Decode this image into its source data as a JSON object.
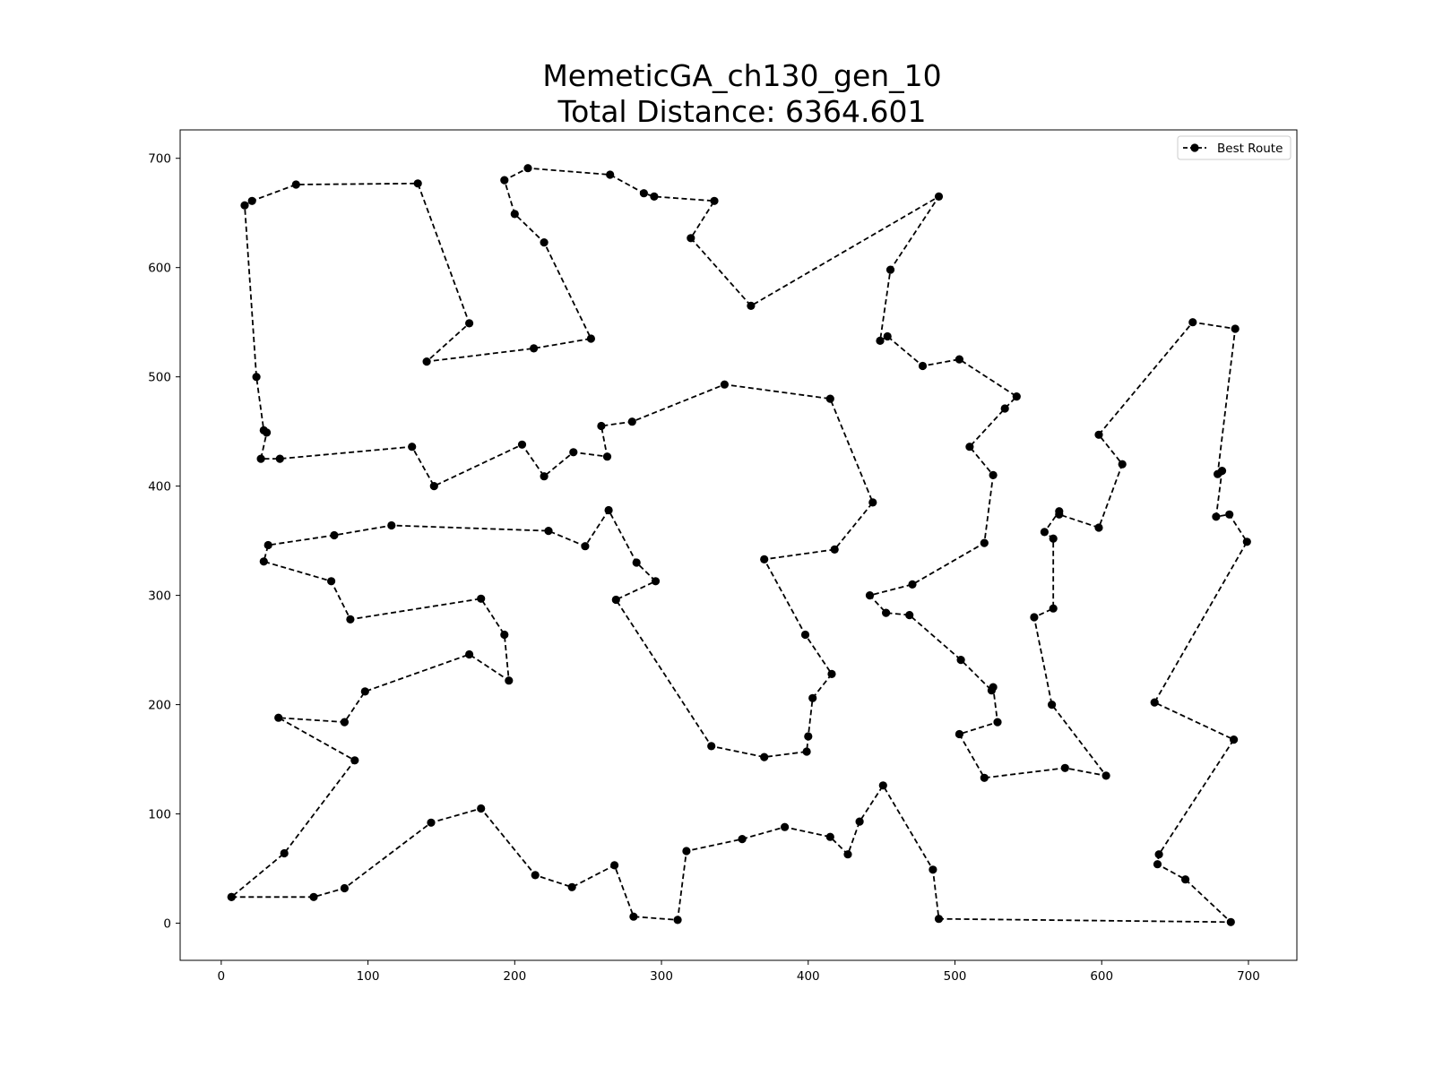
{
  "chart_data": {
    "type": "line",
    "title_line1": "MemeticGA_ch130_gen_10",
    "title_line2": "Total Distance: 6364.601",
    "xlabel": "",
    "ylabel": "",
    "xlim": [
      -28,
      733
    ],
    "ylim": [
      -34,
      726
    ],
    "x_ticks": [
      0,
      100,
      200,
      300,
      400,
      500,
      600,
      700
    ],
    "y_ticks": [
      0,
      100,
      200,
      300,
      400,
      500,
      600,
      700
    ],
    "grid": false,
    "legend": {
      "location": "upper right",
      "entries": [
        "Best Route"
      ]
    },
    "series": [
      {
        "name": "Best Route",
        "color": "#000000",
        "line_style": "dashed",
        "marker": "circle",
        "points": [
          [
            7,
            24
          ],
          [
            63,
            24
          ],
          [
            84,
            32
          ],
          [
            143,
            92
          ],
          [
            177,
            105
          ],
          [
            214,
            44
          ],
          [
            239,
            33
          ],
          [
            268,
            53
          ],
          [
            281,
            6
          ],
          [
            311,
            3
          ],
          [
            317,
            66
          ],
          [
            355,
            77
          ],
          [
            384,
            88
          ],
          [
            415,
            79
          ],
          [
            427,
            63
          ],
          [
            435,
            93
          ],
          [
            451,
            126
          ],
          [
            485,
            49
          ],
          [
            489,
            4
          ],
          [
            688,
            1
          ],
          [
            657,
            40
          ],
          [
            638,
            54
          ],
          [
            639,
            63
          ],
          [
            690,
            168
          ],
          [
            636,
            202
          ],
          [
            699,
            349
          ],
          [
            687,
            374
          ],
          [
            678,
            372
          ],
          [
            682,
            414
          ],
          [
            679,
            411
          ],
          [
            691,
            544
          ],
          [
            662,
            550
          ],
          [
            598,
            447
          ],
          [
            614,
            420
          ],
          [
            598,
            362
          ],
          [
            571,
            374
          ],
          [
            571,
            377
          ],
          [
            561,
            358
          ],
          [
            567,
            352
          ],
          [
            567,
            288
          ],
          [
            554,
            280
          ],
          [
            566,
            200
          ],
          [
            603,
            135
          ],
          [
            575,
            142
          ],
          [
            520,
            133
          ],
          [
            503,
            173
          ],
          [
            529,
            184
          ],
          [
            526,
            216
          ],
          [
            525,
            213
          ],
          [
            504,
            241
          ],
          [
            469,
            282
          ],
          [
            453,
            284
          ],
          [
            442,
            300
          ],
          [
            471,
            310
          ],
          [
            520,
            348
          ],
          [
            526,
            410
          ],
          [
            510,
            436
          ],
          [
            534,
            471
          ],
          [
            542,
            482
          ],
          [
            503,
            516
          ],
          [
            478,
            510
          ],
          [
            454,
            537
          ],
          [
            449,
            533
          ],
          [
            456,
            598
          ],
          [
            489,
            665
          ],
          [
            361,
            565
          ],
          [
            320,
            627
          ],
          [
            336,
            661
          ],
          [
            295,
            665
          ],
          [
            288,
            668
          ],
          [
            265,
            685
          ],
          [
            209,
            691
          ],
          [
            193,
            680
          ],
          [
            200,
            649
          ],
          [
            220,
            623
          ],
          [
            252,
            535
          ],
          [
            213,
            526
          ],
          [
            140,
            514
          ],
          [
            169,
            549
          ],
          [
            134,
            677
          ],
          [
            51,
            676
          ],
          [
            21,
            661
          ],
          [
            16,
            657
          ],
          [
            24,
            500
          ],
          [
            29,
            451
          ],
          [
            31,
            449
          ],
          [
            27,
            425
          ],
          [
            40,
            425
          ],
          [
            130,
            436
          ],
          [
            145,
            400
          ],
          [
            205,
            438
          ],
          [
            220,
            409
          ],
          [
            240,
            431
          ],
          [
            263,
            427
          ],
          [
            259,
            455
          ],
          [
            280,
            459
          ],
          [
            343,
            493
          ],
          [
            415,
            480
          ],
          [
            444,
            385
          ],
          [
            418,
            342
          ],
          [
            370,
            333
          ],
          [
            398,
            264
          ],
          [
            416,
            228
          ],
          [
            403,
            206
          ],
          [
            400,
            171
          ],
          [
            399,
            157
          ],
          [
            370,
            152
          ],
          [
            334,
            162
          ],
          [
            269,
            296
          ],
          [
            296,
            313
          ],
          [
            283,
            330
          ],
          [
            264,
            378
          ],
          [
            248,
            345
          ],
          [
            223,
            359
          ],
          [
            116,
            364
          ],
          [
            77,
            355
          ],
          [
            32,
            346
          ],
          [
            29,
            331
          ],
          [
            75,
            313
          ],
          [
            88,
            278
          ],
          [
            177,
            297
          ],
          [
            193,
            264
          ],
          [
            196,
            222
          ],
          [
            169,
            246
          ],
          [
            98,
            212
          ],
          [
            84,
            184
          ],
          [
            39,
            188
          ],
          [
            91,
            149
          ],
          [
            43,
            64
          ],
          [
            7,
            24
          ]
        ]
      }
    ]
  }
}
